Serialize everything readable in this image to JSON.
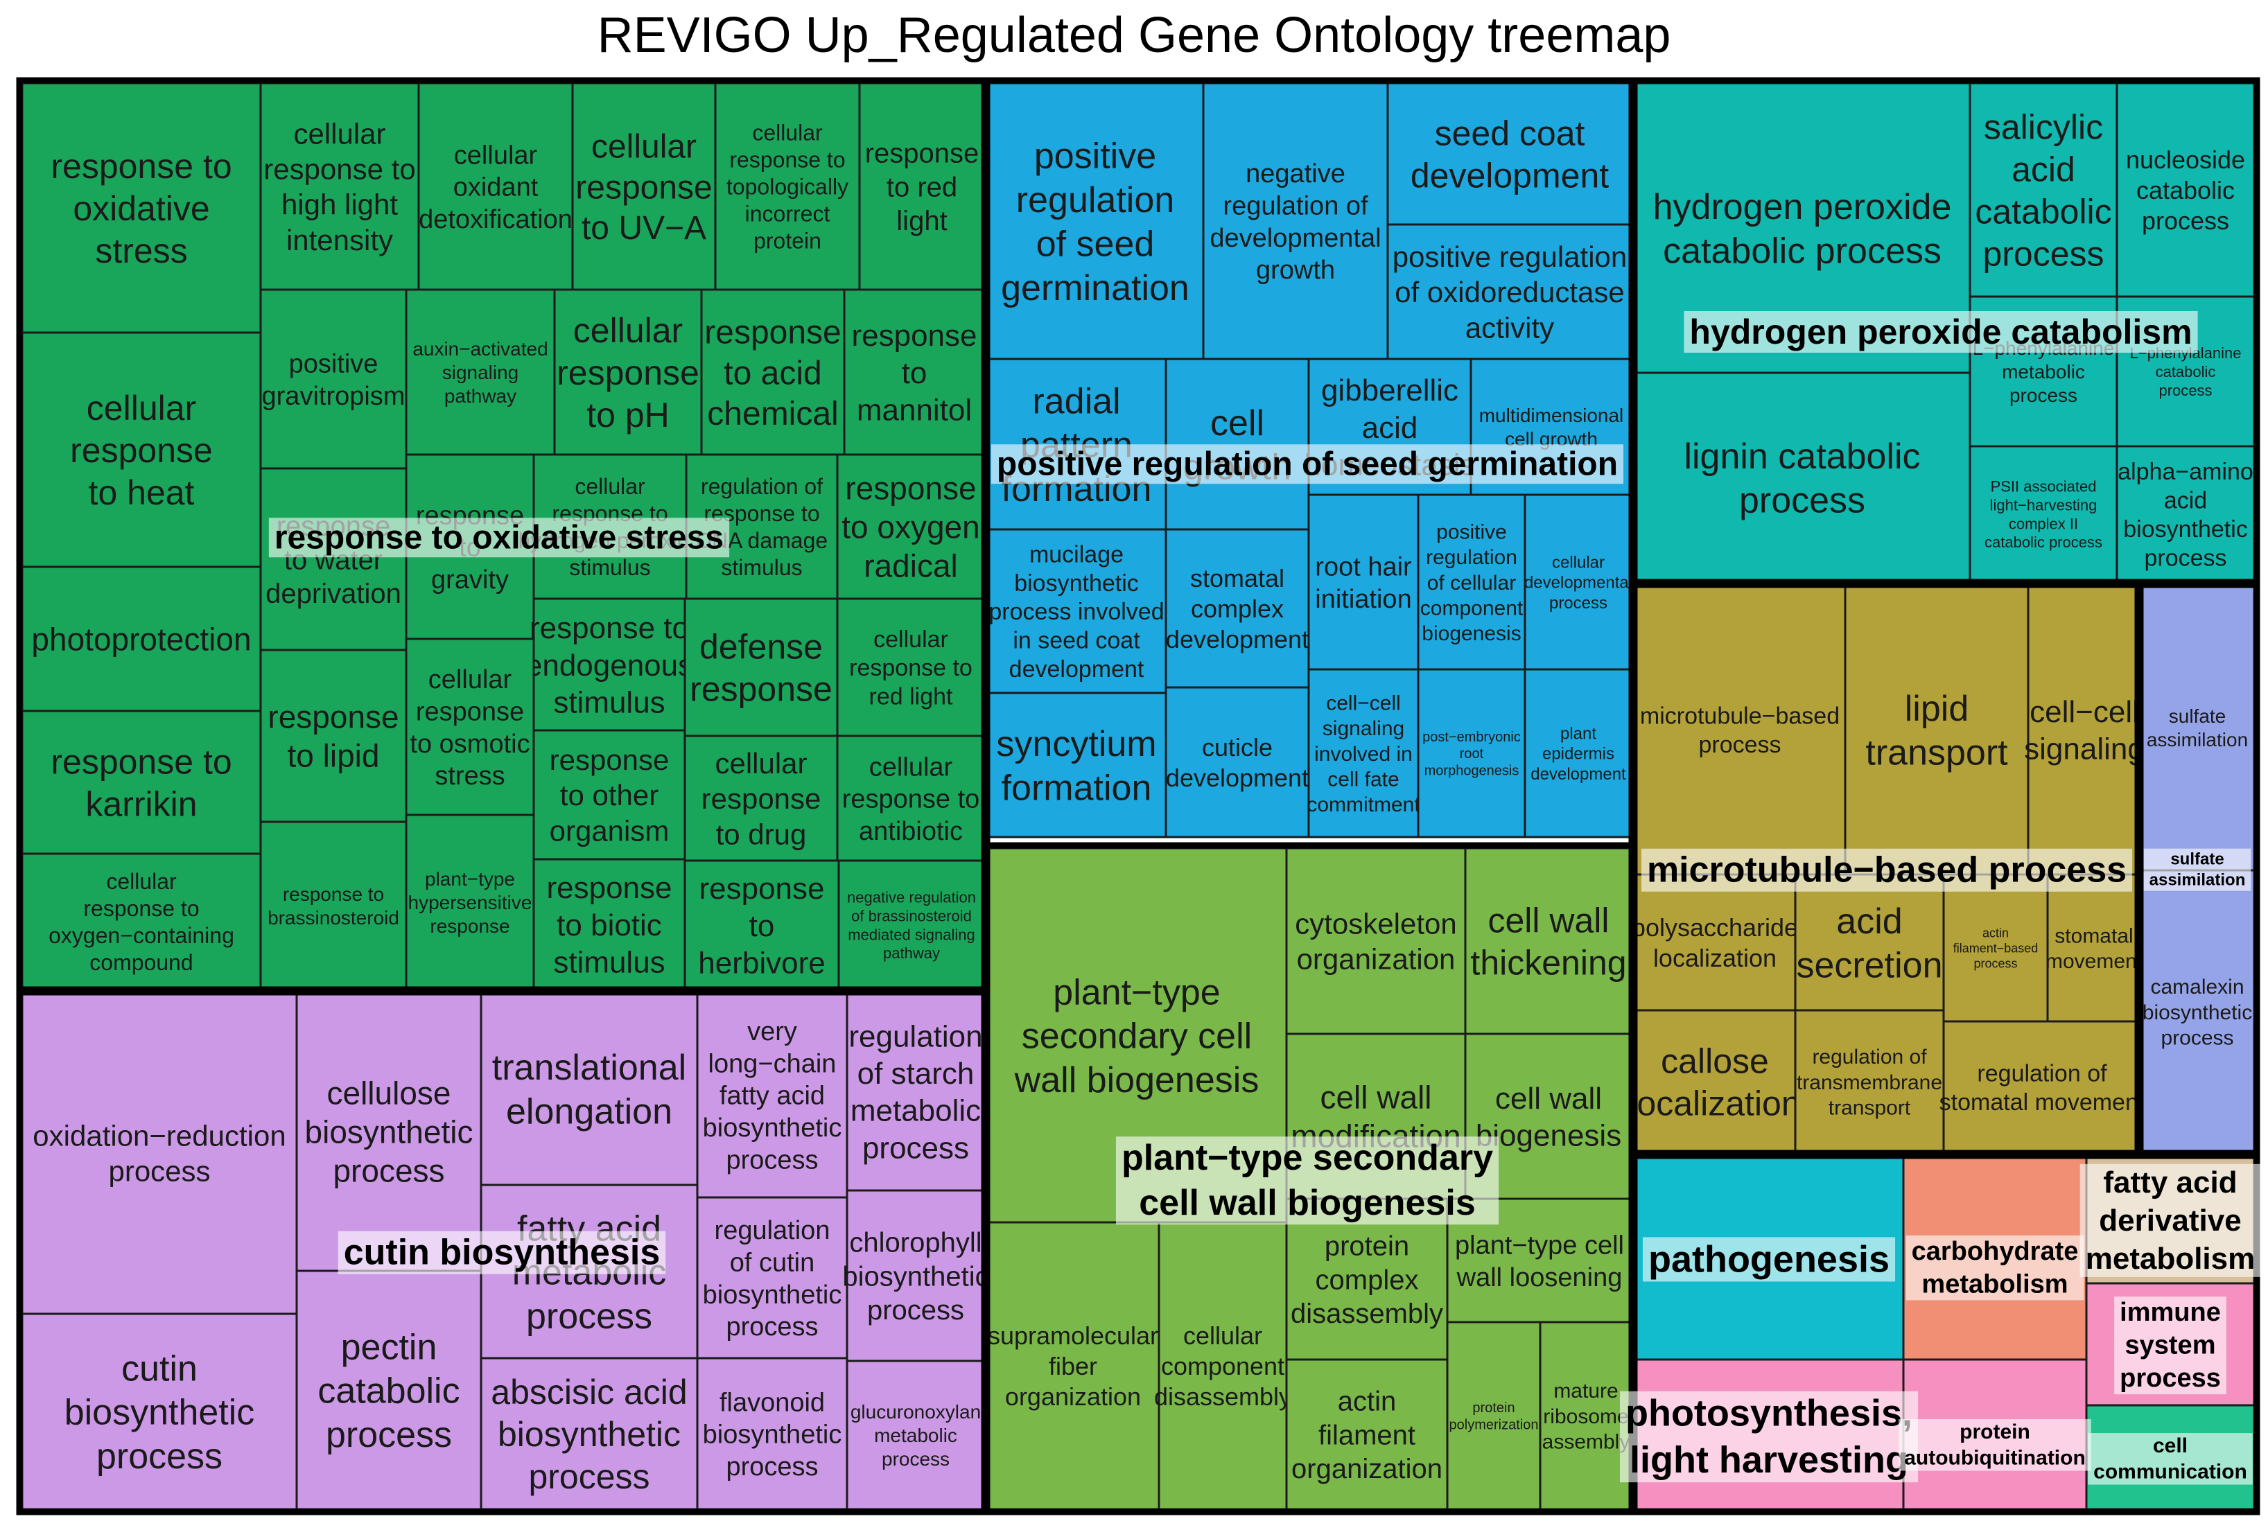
{
  "chart_data": {
    "type": "treemap",
    "title": "REVIGO Up_Regulated Gene Ontology treemap",
    "groups": [
      {
        "name": "response to oxidative stress",
        "color": "#1aa65a",
        "terms": [
          "response to oxidative stress",
          "cellular response to heat",
          "photoprotection",
          "response to karrikin",
          "cellular response to oxygen-containing compound",
          "cellular response to high light intensity",
          "cellular oxidant detoxification",
          "cellular response to UV-A",
          "cellular response to topologically incorrect protein",
          "response to red light",
          "positive gravitropism",
          "auxin-activated signaling pathway",
          "cellular response to pH",
          "response to acid chemical",
          "response to mannitol",
          "response to water deprivation",
          "response to gravity",
          "cellular response to hydrogen peroxide",
          "regulation of response to DNA damage stimulus",
          "response to oxygen radical",
          "response to endogenous stimulus",
          "defense response",
          "cellular response to red light",
          "response to lipid",
          "cellular response to osmotic stress",
          "response to other organism",
          "cellular response to drug",
          "cellular response to antibiotic",
          "response to brassinosteroid",
          "plant-type hypersensitive response",
          "response to biotic stimulus",
          "response to herbivore",
          "negative regulation of brassinosteroid mediated signaling pathway"
        ]
      },
      {
        "name": "positive regulation of seed germination",
        "color": "#1ea8e0",
        "terms": [
          "positive regulation of seed germination",
          "negative regulation of developmental growth",
          "seed coat development",
          "positive regulation of oxidoreductase activity",
          "radial pattern formation",
          "cell growth",
          "gibberellic acid homeostasis",
          "multidimensional cell growth",
          "mucilage biosynthetic process involved in seed coat development",
          "stomatal complex development",
          "root hair initiation",
          "positive regulation of cellular component biogenesis",
          "cellular developmental process",
          "syncytium formation",
          "cuticle development",
          "cell-cell signaling involved in cell fate commitment",
          "post-embryonic root morphogenesis",
          "plant epidermis development"
        ]
      },
      {
        "name": "hydrogen peroxide catabolism",
        "color": "#10b8ae",
        "terms": [
          "hydrogen peroxide catabolic process",
          "salicylic acid catabolic process",
          "nucleoside catabolic process",
          "lignin catabolic process",
          "L-phenylalanine metabolic process",
          "L-phenylalanine catabolic process",
          "PSII associated light-harvesting complex II catabolic process",
          "alpha-amino acid biosynthetic process"
        ]
      },
      {
        "name": "cutin biosynthesis",
        "color": "#cc99e6",
        "terms": [
          "oxidation-reduction process",
          "cutin biosynthetic process",
          "cellulose biosynthetic process",
          "pectin catabolic process",
          "translational elongation",
          "fatty acid metabolic process",
          "abscisic acid biosynthetic process",
          "very long-chain fatty acid biosynthetic process",
          "regulation of cutin biosynthetic process",
          "flavonoid biosynthetic process",
          "regulation of starch metabolic process",
          "chlorophyll biosynthetic process",
          "glucuronoxylan metabolic process"
        ]
      },
      {
        "name": "plant-type secondary cell wall biogenesis",
        "color": "#7ab84a",
        "terms": [
          "plant-type secondary cell wall biogenesis",
          "cytoskeleton organization",
          "cell wall thickening",
          "cell wall modification",
          "cell wall biogenesis",
          "supramolecular fiber organization",
          "cellular component disassembly",
          "protein complex disassembly",
          "plant-type cell wall loosening",
          "actin filament organization",
          "protein polymerization",
          "mature ribosome assembly"
        ]
      },
      {
        "name": "microtubule-based process",
        "color": "#b3a13a",
        "terms": [
          "microtubule-based process",
          "lipid transport",
          "cell-cell signaling",
          "polysaccharide localization",
          "acid secretion",
          "actin filament-based process",
          "stomatal movement",
          "callose localization",
          "regulation of transmembrane transport",
          "regulation of stomatal movement"
        ]
      },
      {
        "name": "sulfate assimilation",
        "color": "#95a4e8",
        "terms": [
          "sulfate assimilation",
          "camalexin biosynthetic process"
        ]
      },
      {
        "name": "pathogenesis",
        "color": "#12bccc",
        "terms": [
          "pathogenesis"
        ]
      },
      {
        "name": "carbohydrate metabolism",
        "color": "#f08f73",
        "terms": [
          "carbohydrate metabolism"
        ]
      },
      {
        "name": "fatty acid derivative metabolism",
        "color": "#d6bf9a",
        "terms": [
          "fatty acid derivative metabolism"
        ]
      },
      {
        "name": "photosynthesis, light harvesting",
        "color": "#f590c0",
        "terms": [
          "photosynthesis, light harvesting"
        ]
      },
      {
        "name": "protein autoubiquitination",
        "color": "#f590c0",
        "terms": [
          "protein autoubiquitination"
        ]
      },
      {
        "name": "immune system process",
        "color": "#f590c0",
        "terms": [
          "immune system process"
        ]
      },
      {
        "name": "cell communication",
        "color": "#22c28e",
        "terms": [
          "cell communication"
        ]
      }
    ],
    "group_labels": [
      "response to oxidative stress",
      "positive regulation of seed germination",
      "hydrogen peroxide catabolism",
      "cutin biosynthesis",
      "plant-type secondary cell wall biogenesis",
      "microtubule-based process",
      "sulfate assimilation",
      "pathogenesis",
      "carbohydrate metabolism",
      "fatty acid derivative metabolism",
      "photosynthesis, light harvesting",
      "protein autoubiquitination",
      "immune system process",
      "cell communication"
    ],
    "visible_cell_text": [
      "response to oxidative stress",
      "cellular response to heat",
      "photoprotection",
      "response to karrikin",
      "cellular response to oxygen-containing compound",
      "cellular response to high light intensity",
      "cellular oxidant detoxification",
      "cellular response to UV-A",
      "cellular response to topologically incorrect protein",
      "response to red light",
      "positive gravitropism",
      "auxin-activated signaling pathway",
      "cellular response to pH",
      "response to acid chemical",
      "response to mannitol",
      "response to water deprivation",
      "response to gravity",
      "cellular response to hydrogen peroxide",
      "regulation of response to DNA damage stimulus",
      "response to oxygen radical",
      "response to endogenous stimulus",
      "defense response",
      "cellular response to red light",
      "response to lipid",
      "cellular response to osmotic stress",
      "response to other organism",
      "cellular response to drug",
      "cellular response to antibiotic",
      "response to brassinosteroid",
      "plant-type hypersensitive response",
      "response to biotic stimulus",
      "response to herbivore",
      "negative regulation of brassinosteroid mediated signaling pathway",
      "positive regulation of seed germination",
      "negative regulation of developmental growth",
      "seed coat development",
      "positive regulation of oxidoreductase activity",
      "radial pattern formation",
      "cell growth",
      "gibberellic acid homeostasis",
      "multidimensional cell growth",
      "mucilage biosynthetic process involved in seed coat development",
      "stomatal complex development",
      "root hair initiation",
      "positive regulation of cellular component biogenesis",
      "cellular developmental process",
      "syncytium formation",
      "cuticle development",
      "cell-cell signaling involved in cell fate commitment",
      "post-embryonic root morphogenesis",
      "plant epidermis development",
      "hydrogen peroxide catabolic process",
      "salicylic acid catabolic process",
      "nucleoside catabolic process",
      "lignin catabolic process",
      "L-phenylalanine metabolic process",
      "L-phenylalanine catabolic process",
      "PSII associated light-harvesting complex II catabolic process",
      "alpha-amino acid biosynthetic process",
      "oxidation-reduction process",
      "cutin biosynthetic process",
      "cellulose biosynthetic process",
      "pectin catabolic process",
      "translational elongation",
      "fatty acid metabolic process",
      "abscisic acid biosynthetic process",
      "very long-chain fatty acid biosynthetic process",
      "regulation of cutin biosynthetic process",
      "flavonoid biosynthetic process",
      "regulation of starch metabolic process",
      "chlorophyll biosynthetic process",
      "glucuronoxylan metabolic process",
      "plant-type secondary cell wall biogenesis",
      "cytoskeleton organization",
      "cell wall thickening",
      "cell wall modification",
      "cell wall biogenesis",
      "supramolecular fiber organization",
      "cellular component disassembly",
      "protein complex disassembly",
      "plant-type cell wall loosening",
      "actin filament organization",
      "protein polymerization",
      "mature ribosome assembly",
      "microtubule-based process",
      "lipid transport",
      "cell-cell signaling",
      "polysaccharide localization",
      "acid secretion",
      "actin filament-based process",
      "stomatal movement",
      "callose localization",
      "regulation of transmembrane transport",
      "regulation of stomatal movement",
      "sulfate assimilation",
      "camalexin biosynthetic process",
      "pathogenesis",
      "carbohydrate metabolism",
      "fatty acid derivative metabolism",
      "photosynthesis, light harvesting",
      "protein autoubiquitination",
      "immune system process",
      "cell communication"
    ]
  }
}
